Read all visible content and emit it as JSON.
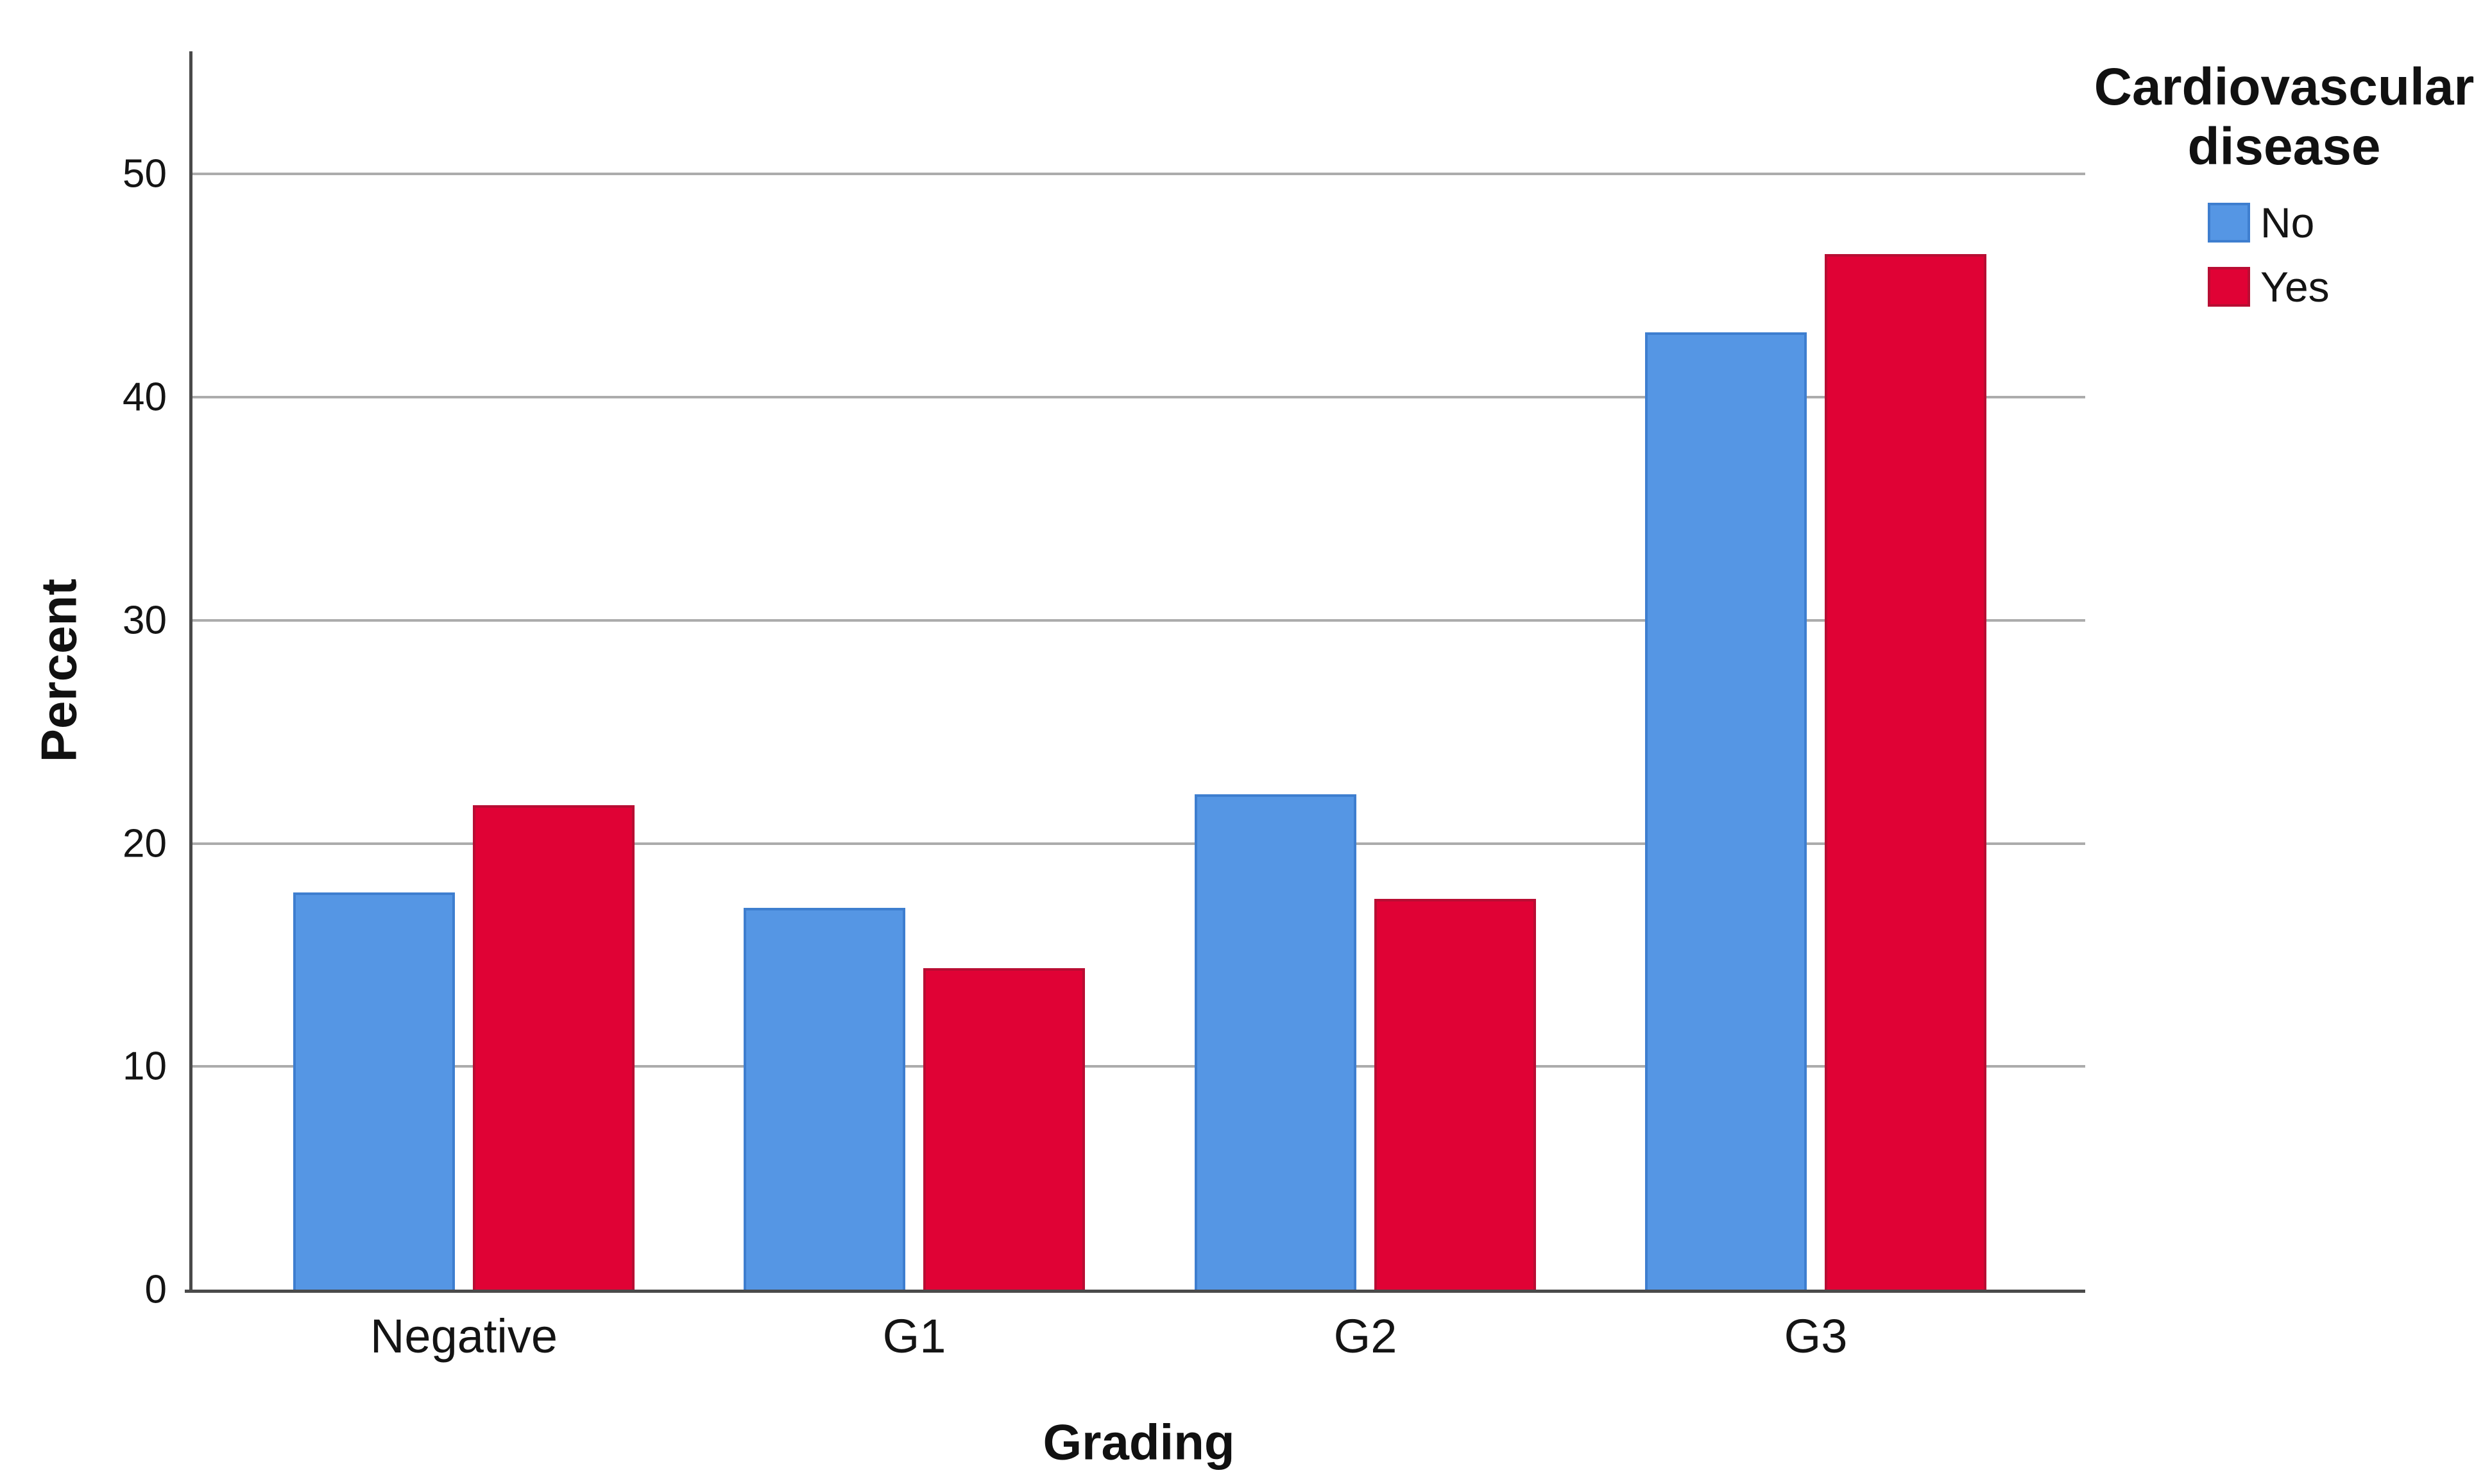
{
  "chart_data": {
    "type": "bar",
    "title": "",
    "categories": [
      "Negative",
      "G1",
      "G2",
      "G3"
    ],
    "series": [
      {
        "name": "No",
        "color": "#5596E4",
        "border_color": "#3E7ECF",
        "values": [
          17.8,
          17.1,
          22.2,
          42.9
        ]
      },
      {
        "name": "Yes",
        "color": "#E00235",
        "border_color": "#B90D33",
        "values": [
          21.7,
          14.4,
          17.5,
          46.4
        ]
      }
    ],
    "xlabel": "Grading",
    "ylabel": "Percent",
    "ylim": [
      0,
      55.5
    ],
    "yticks": [
      0,
      10,
      20,
      30,
      40,
      50
    ],
    "grid": "horizontal-only",
    "legend_title": "Cardiovascular disease",
    "legend_title_lines": [
      "Cardiovascular",
      "disease"
    ],
    "legend_position": "top-right-outside",
    "units": "percent"
  },
  "colors": {
    "background": "#ffffff",
    "axis": "#4a4a4a",
    "gridline": "#acacac",
    "text": "#141414"
  }
}
